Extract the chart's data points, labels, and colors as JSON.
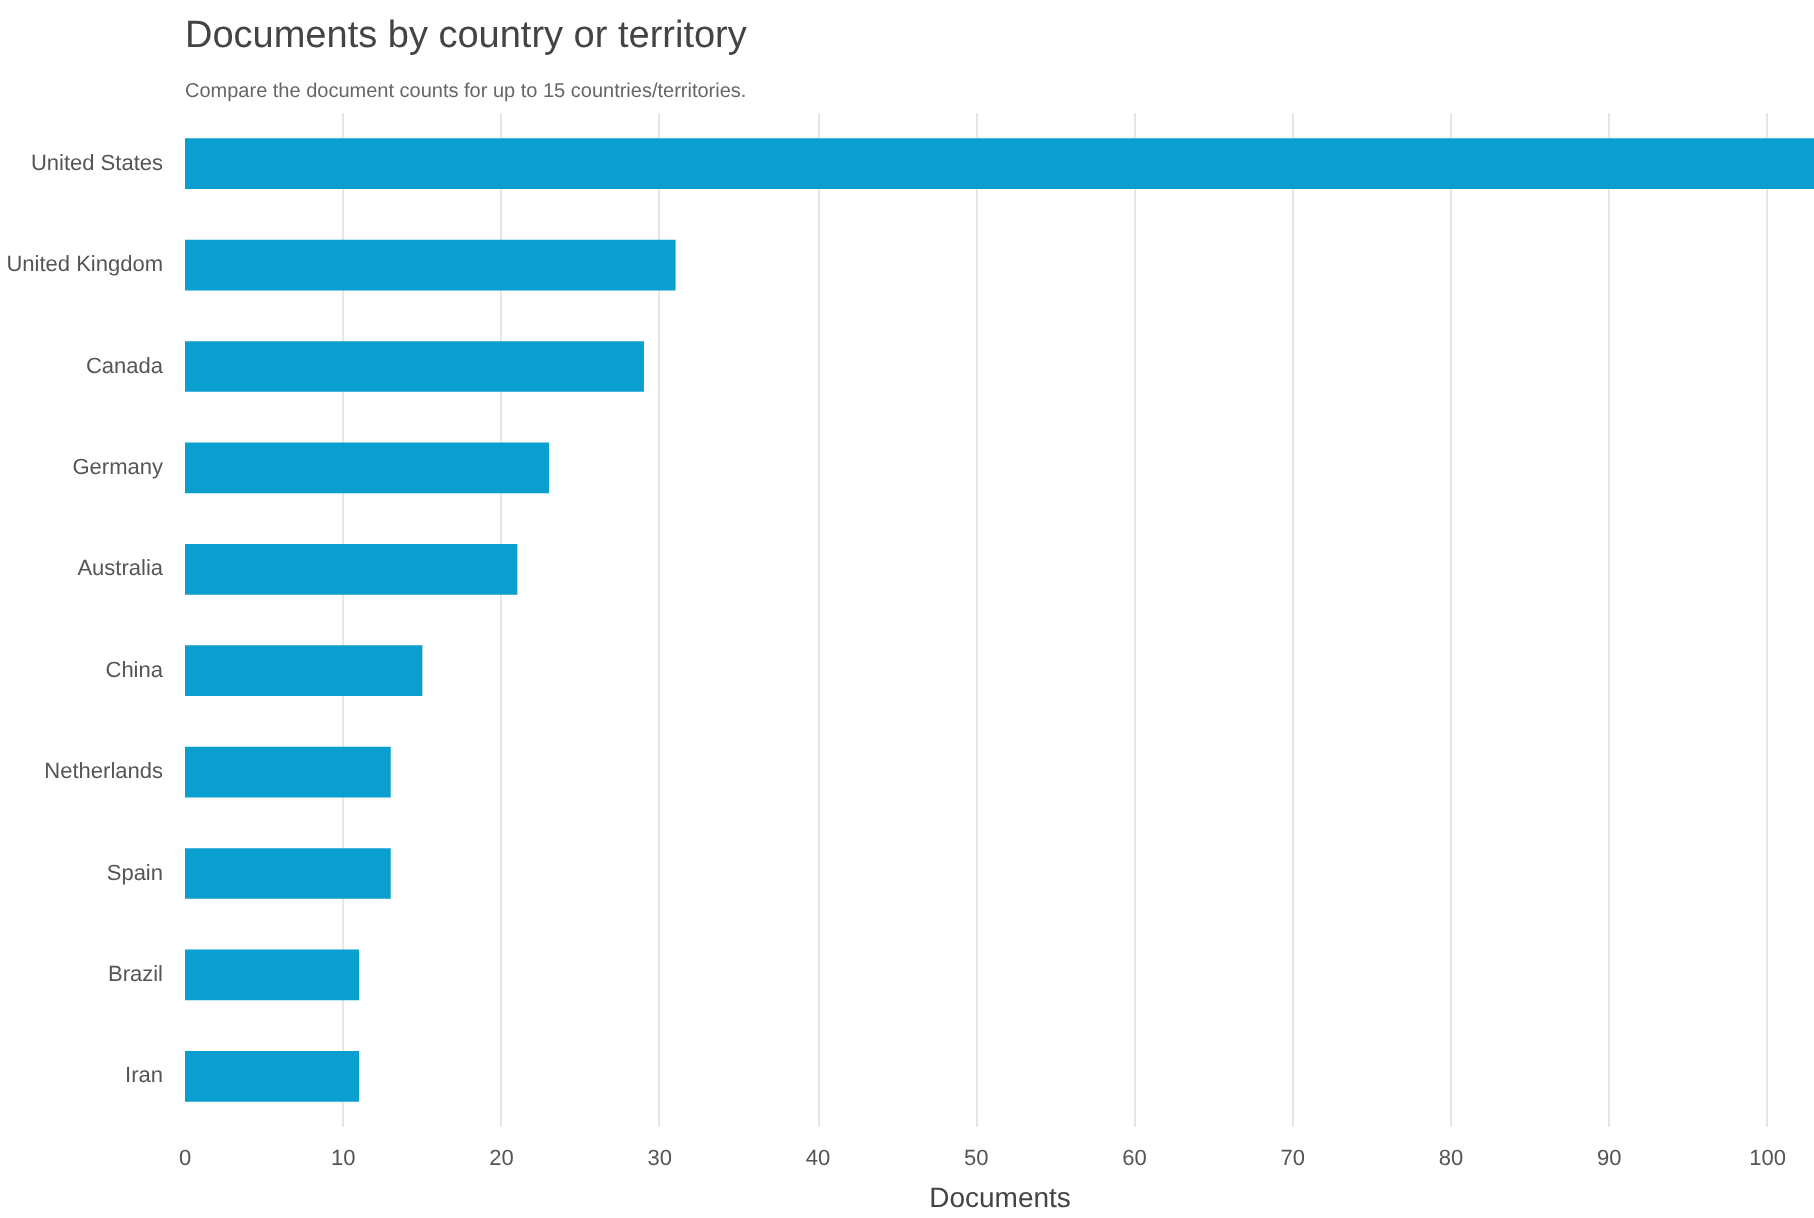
{
  "chart_data": {
    "type": "bar",
    "orientation": "horizontal",
    "title": "Documents by country or territory",
    "subtitle": "Compare the document counts for up to 15 countries/territories.",
    "xlabel": "Documents",
    "categories": [
      "United States",
      "United Kingdom",
      "Canada",
      "Germany",
      "Australia",
      "China",
      "Netherlands",
      "Spain",
      "Brazil",
      "Iran"
    ],
    "values": [
      103,
      31,
      29,
      23,
      21,
      15,
      13,
      13,
      11,
      11
    ],
    "color": "#0b9fcf",
    "xlim": [
      0,
      103
    ],
    "xticks": [
      0,
      10,
      20,
      30,
      40,
      50,
      60,
      70,
      80,
      90,
      100
    ],
    "grid": "x"
  }
}
